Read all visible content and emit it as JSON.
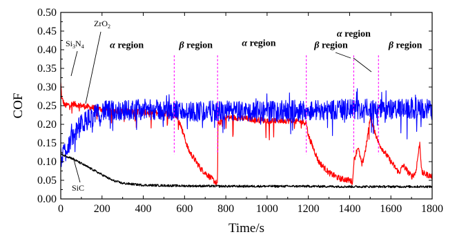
{
  "chart_data": {
    "type": "line",
    "title": "",
    "xlabel": "Time/s",
    "ylabel": "COF",
    "xlim": [
      0,
      1800
    ],
    "ylim": [
      0,
      0.5
    ],
    "xticks": [
      "0",
      "200",
      "400",
      "600",
      "800",
      "1000",
      "1200",
      "1400",
      "1600",
      "1800"
    ],
    "yticks": [
      "0.00",
      "0.05",
      "0.10",
      "0.15",
      "0.20",
      "0.25",
      "0.30",
      "0.35",
      "0.40",
      "0.45",
      "0.50"
    ],
    "series": [
      {
        "name": "Si3N4",
        "color": "#ff0000",
        "description_points": [
          [
            0,
            0.31
          ],
          [
            5,
            0.27
          ],
          [
            20,
            0.25
          ],
          [
            60,
            0.255
          ],
          [
            100,
            0.25
          ],
          [
            150,
            0.245
          ],
          [
            200,
            0.24
          ],
          [
            300,
            0.235
          ],
          [
            400,
            0.232
          ],
          [
            500,
            0.23
          ],
          [
            560,
            0.225
          ],
          [
            580,
            0.2
          ],
          [
            620,
            0.13
          ],
          [
            680,
            0.08
          ],
          [
            740,
            0.05
          ],
          [
            760,
            0.04
          ],
          [
            762,
            0.2
          ],
          [
            800,
            0.22
          ],
          [
            900,
            0.215
          ],
          [
            1000,
            0.21
          ],
          [
            1100,
            0.21
          ],
          [
            1190,
            0.205
          ],
          [
            1200,
            0.17
          ],
          [
            1250,
            0.1
          ],
          [
            1300,
            0.07
          ],
          [
            1350,
            0.055
          ],
          [
            1400,
            0.05
          ],
          [
            1415,
            0.045
          ],
          [
            1420,
            0.1
          ],
          [
            1440,
            0.14
          ],
          [
            1460,
            0.09
          ],
          [
            1480,
            0.14
          ],
          [
            1500,
            0.22
          ],
          [
            1540,
            0.15
          ],
          [
            1600,
            0.1
          ],
          [
            1640,
            0.07
          ],
          [
            1660,
            0.09
          ],
          [
            1700,
            0.06
          ],
          [
            1720,
            0.07
          ],
          [
            1740,
            0.15
          ],
          [
            1750,
            0.07
          ],
          [
            1800,
            0.06
          ]
        ]
      },
      {
        "name": "ZrO2",
        "color": "#0000ff",
        "description_points": [
          [
            0,
            0.11
          ],
          [
            50,
            0.16
          ],
          [
            100,
            0.2
          ],
          [
            150,
            0.22
          ],
          [
            200,
            0.235
          ],
          [
            400,
            0.24
          ],
          [
            600,
            0.235
          ],
          [
            800,
            0.235
          ],
          [
            1000,
            0.235
          ],
          [
            1200,
            0.238
          ],
          [
            1400,
            0.24
          ],
          [
            1600,
            0.24
          ],
          [
            1800,
            0.24
          ]
        ]
      },
      {
        "name": "SiC",
        "color": "#000000",
        "description_points": [
          [
            0,
            0.12
          ],
          [
            50,
            0.11
          ],
          [
            100,
            0.095
          ],
          [
            150,
            0.08
          ],
          [
            200,
            0.065
          ],
          [
            250,
            0.05
          ],
          [
            300,
            0.042
          ],
          [
            400,
            0.037
          ],
          [
            600,
            0.035
          ],
          [
            800,
            0.034
          ],
          [
            1000,
            0.034
          ],
          [
            1200,
            0.034
          ],
          [
            1400,
            0.033
          ],
          [
            1600,
            0.033
          ],
          [
            1800,
            0.033
          ]
        ]
      }
    ],
    "series_labels": {
      "sin_prefix": "Si",
      "sin_sub1": "3",
      "sin_mid": "N",
      "sin_sub2": "4",
      "zr_prefix": "ZrO",
      "zr_sub": "2",
      "sic": "SiC"
    },
    "region_boundaries": [
      550,
      760,
      1190,
      1420,
      1540
    ],
    "region_line_color": "#ff00ff",
    "regions": [
      {
        "symbol": "α",
        "text": " region",
        "x": 320
      },
      {
        "symbol": "β",
        "text": " region",
        "x": 655
      },
      {
        "symbol": "α",
        "text": " region",
        "x": 960
      },
      {
        "symbol": "β",
        "text": " region",
        "x": 1310
      },
      {
        "symbol": "α",
        "text": " region",
        "x": 1420
      },
      {
        "symbol": "β",
        "text": " region",
        "x": 1670
      }
    ]
  }
}
